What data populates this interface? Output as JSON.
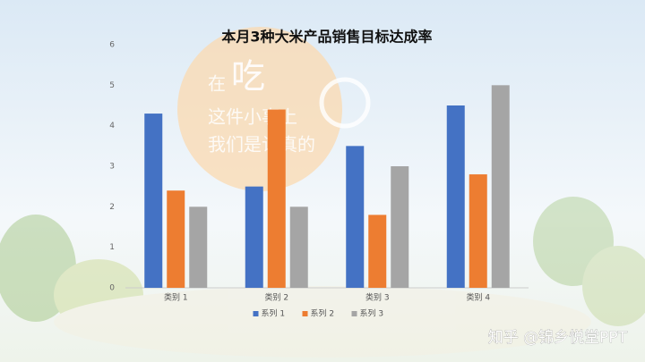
{
  "chart_data": {
    "type": "bar",
    "title": "本月3种大米产品销售目标达成率",
    "categories": [
      "类别 1",
      "类别 2",
      "类别 3",
      "类别 4"
    ],
    "series": [
      {
        "name": "系列 1",
        "color": "#4472c4",
        "values": [
          4.3,
          2.5,
          3.5,
          4.5
        ]
      },
      {
        "name": "系列 2",
        "color": "#ed7d31",
        "values": [
          2.4,
          4.4,
          1.8,
          2.8
        ]
      },
      {
        "name": "系列 3",
        "color": "#a5a5a5",
        "values": [
          2,
          2,
          3,
          5
        ]
      }
    ],
    "ylim": [
      0,
      6
    ],
    "yticks": [
      0,
      1,
      2,
      3,
      4,
      5,
      6
    ],
    "grid": false,
    "legend": "bottom"
  },
  "background_text": [
    "在",
    "吃",
    "这件小事上",
    "我们是认真的"
  ],
  "watermark": "知乎 @锦乡悦堂PPT"
}
